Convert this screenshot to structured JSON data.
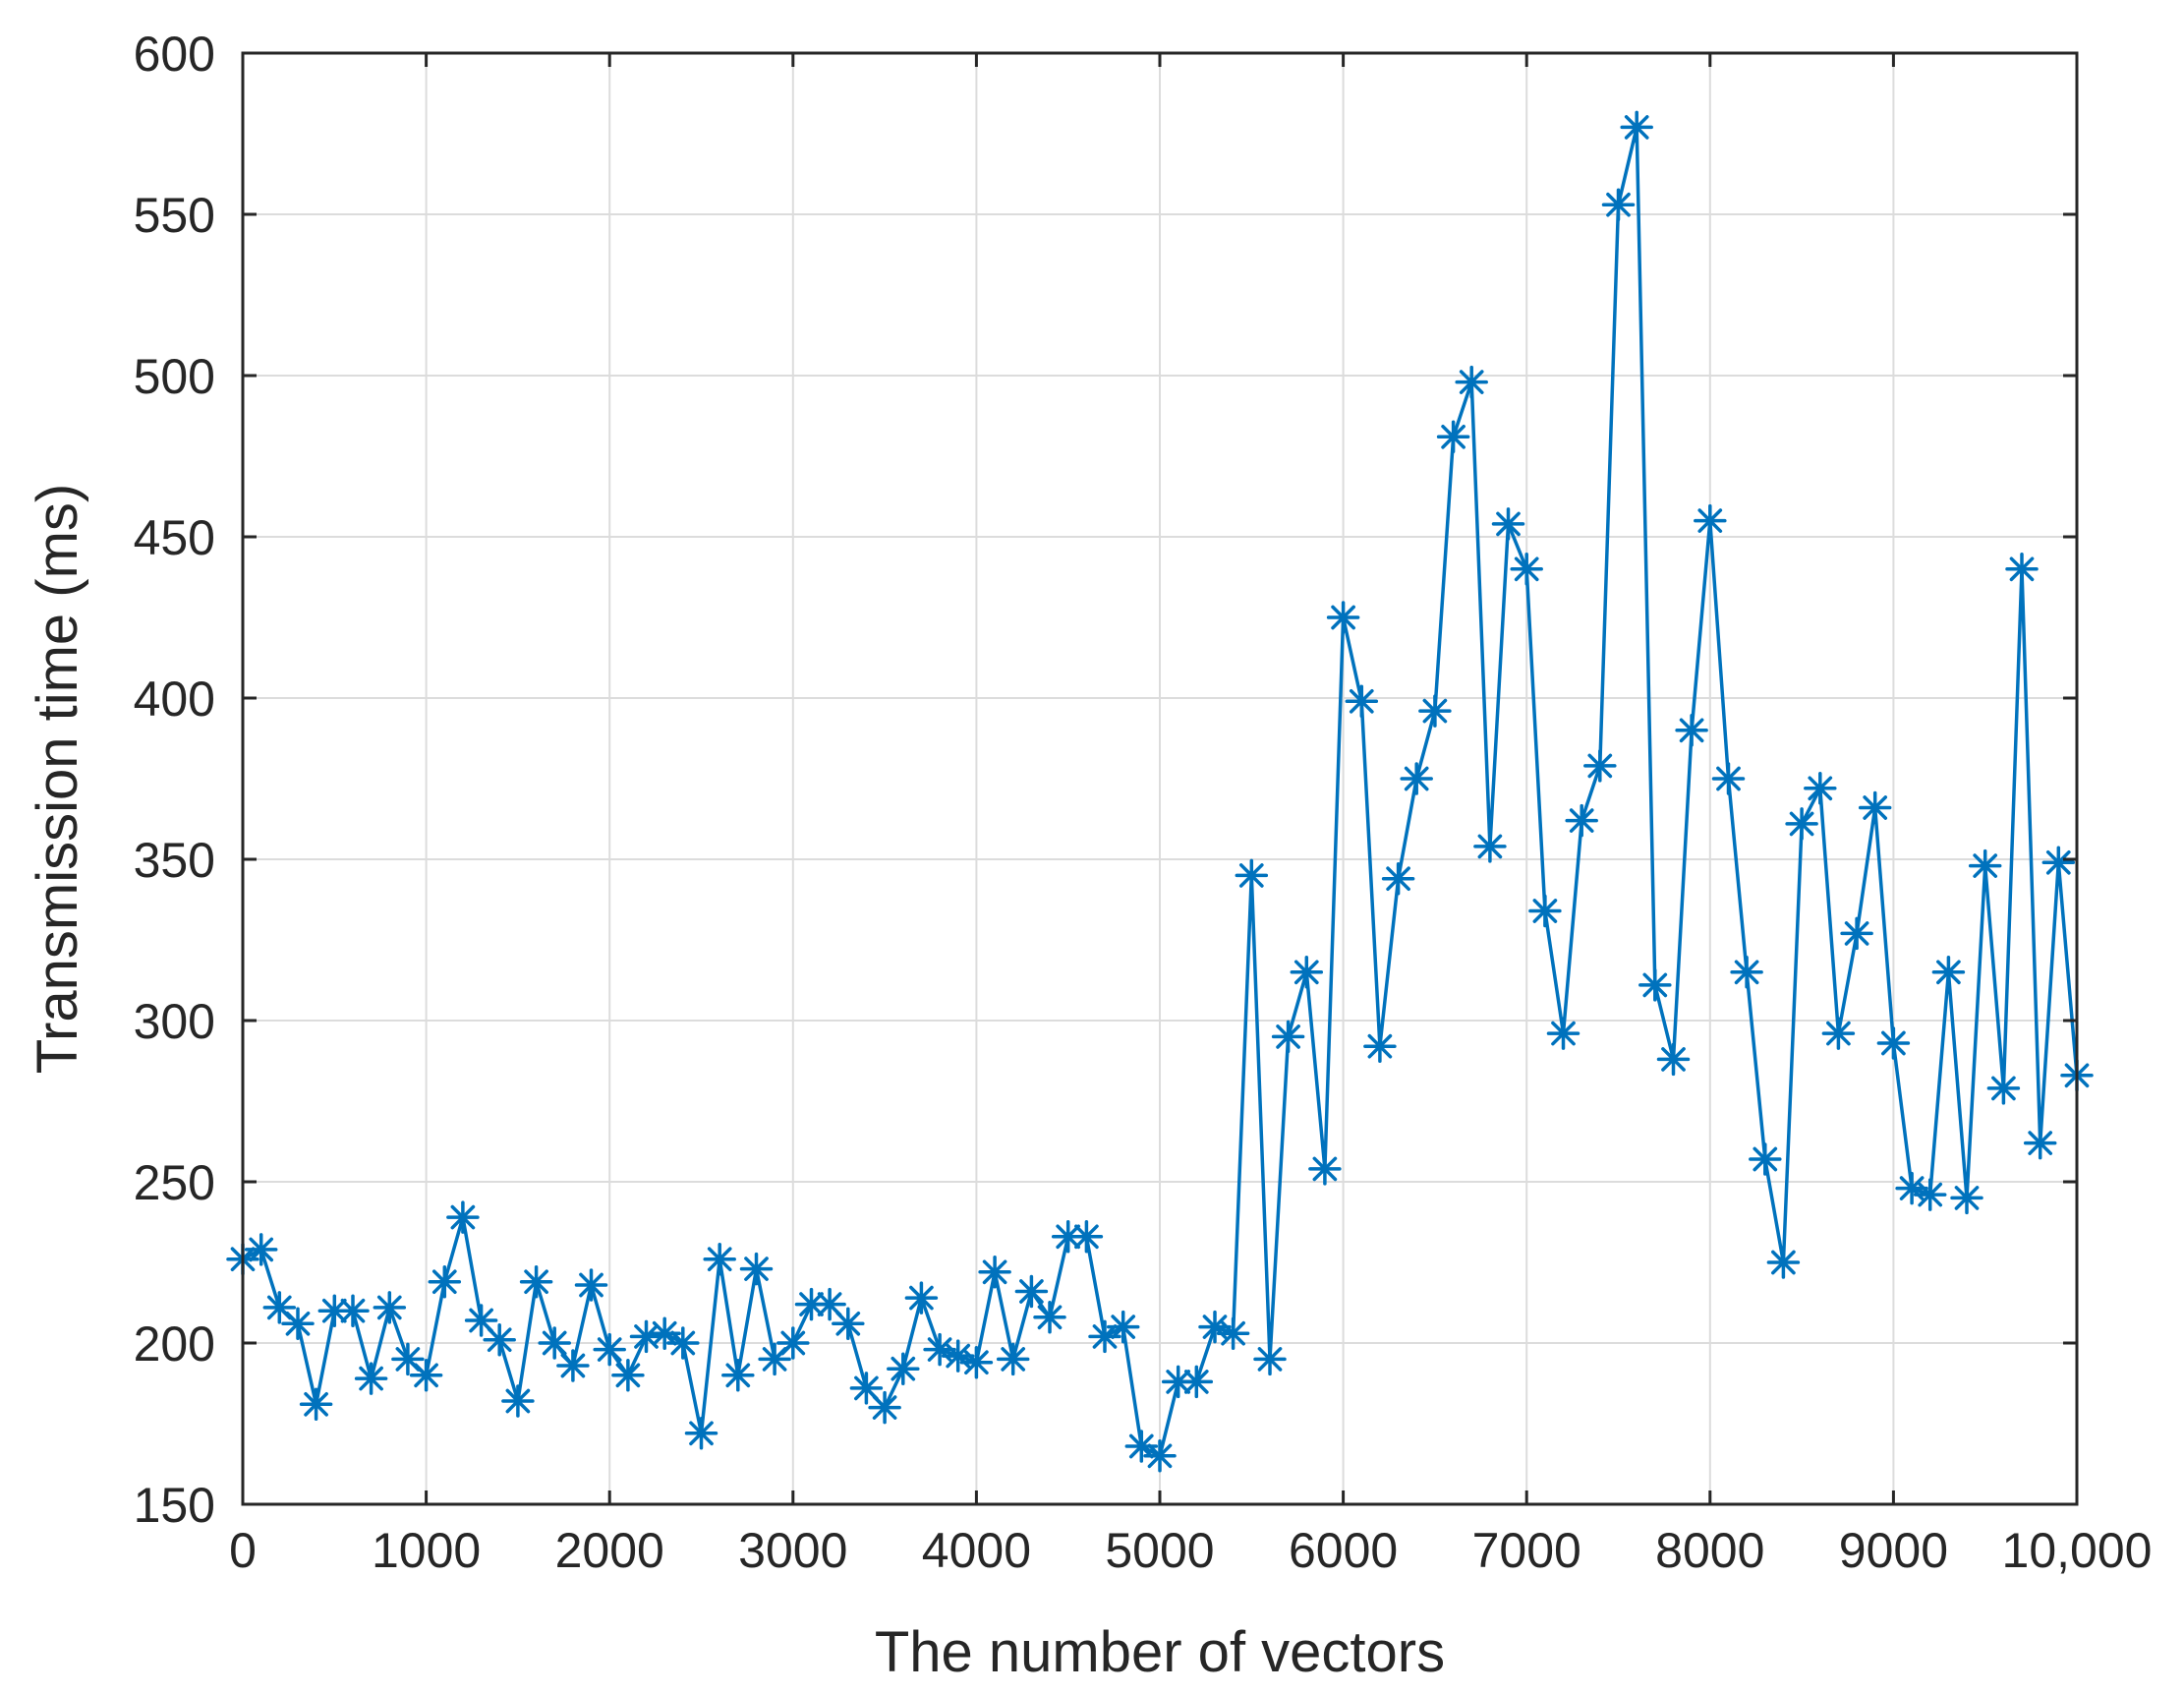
{
  "chart_data": {
    "type": "line",
    "title": "",
    "xlabel": "The number of vectors",
    "ylabel": "Transmission time (ms)",
    "xlim": [
      0,
      10000
    ],
    "ylim": [
      150,
      600
    ],
    "xticks": [
      0,
      1000,
      2000,
      3000,
      4000,
      5000,
      6000,
      7000,
      8000,
      9000,
      10000
    ],
    "xtick_labels": [
      "0",
      "1000",
      "2000",
      "3000",
      "4000",
      "5000",
      "6000",
      "7000",
      "8000",
      "9000",
      "10,000"
    ],
    "yticks": [
      150,
      200,
      250,
      300,
      350,
      400,
      450,
      500,
      550,
      600
    ],
    "ytick_labels": [
      "150",
      "200",
      "250",
      "300",
      "350",
      "400",
      "450",
      "500",
      "550",
      "600"
    ],
    "grid": true,
    "marker": "asterisk",
    "color": "#0072BD",
    "series": [
      {
        "x": [
          0,
          100,
          200,
          300,
          400,
          500,
          600,
          700,
          800,
          900,
          1000,
          1100,
          1200,
          1300,
          1400,
          1500,
          1600,
          1700,
          1800,
          1900,
          2000,
          2100,
          2200,
          2300,
          2400,
          2500,
          2600,
          2700,
          2800,
          2900,
          3000,
          3100,
          3200,
          3300,
          3400,
          3500,
          3600,
          3700,
          3800,
          3900,
          4000,
          4100,
          4200,
          4300,
          4400,
          4500,
          4600,
          4700,
          4800,
          4900,
          5000,
          5100,
          5200,
          5300,
          5400,
          5500,
          5600,
          5700,
          5800,
          5900,
          6000,
          6100,
          6200,
          6300,
          6400,
          6500,
          6600,
          6700,
          6800,
          6900,
          7000,
          7100,
          7200,
          7300,
          7400,
          7500,
          7600,
          7700,
          7800,
          7900,
          8000,
          8100,
          8200,
          8300,
          8400,
          8500,
          8600,
          8700,
          8800,
          8900,
          9000,
          9100,
          9200,
          9300,
          9400,
          9500,
          9600,
          9700,
          9800,
          9900,
          10000
        ],
        "y": [
          226,
          229,
          211,
          206,
          181,
          210,
          210,
          189,
          211,
          195,
          190,
          219,
          239,
          207,
          201,
          182,
          219,
          200,
          193,
          218,
          198,
          190,
          202,
          203,
          200,
          172,
          226,
          190,
          223,
          195,
          200,
          212,
          212,
          206,
          186,
          180,
          192,
          214,
          198,
          196,
          194,
          222,
          195,
          216,
          208,
          233,
          233,
          202,
          205,
          168,
          165,
          188,
          188,
          205,
          203,
          345,
          195,
          295,
          315,
          254,
          425,
          399,
          292,
          344,
          375,
          396,
          481,
          498,
          354,
          454,
          440,
          334,
          296,
          362,
          379,
          553,
          577,
          311,
          288,
          390,
          455,
          375,
          315,
          257,
          225,
          361,
          372,
          296,
          327,
          366,
          293,
          248,
          246,
          315,
          245,
          348,
          279,
          440,
          262,
          349,
          283
        ]
      }
    ]
  }
}
